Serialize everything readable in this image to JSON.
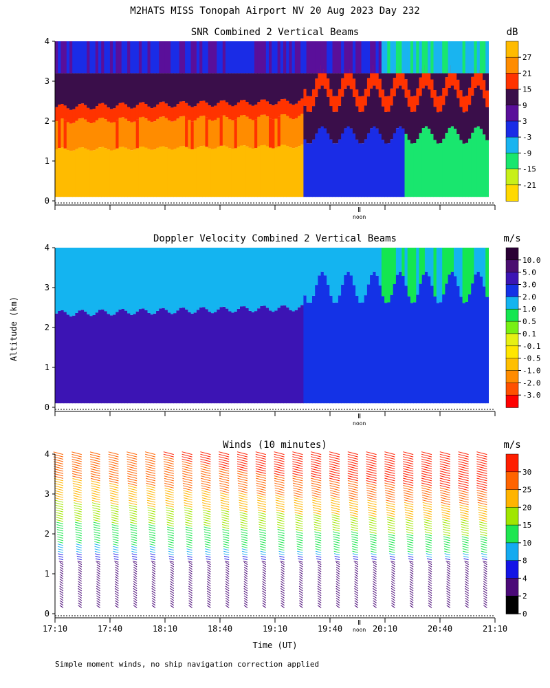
{
  "title": "M2HATS MISS Tonopah Airport NV  20 Aug 2023 Day 232",
  "ylabel": "Altitude (km)",
  "xlabel": "Time (UT)",
  "footnote": "Simple moment winds, no ship navigation correction applied",
  "x_ticks": [
    "17:10",
    "17:40",
    "18:10",
    "18:40",
    "19:10",
    "19:40",
    "20:10",
    "20:40",
    "21:10"
  ],
  "noon_label": "noon",
  "chart_data": [
    {
      "type": "heatmap",
      "title": "SNR Combined 2 Vertical Beams",
      "units": "dB",
      "y_ticks": [
        "0",
        "1",
        "2",
        "3",
        "4"
      ],
      "ylim": [
        0,
        4
      ],
      "xlim": [
        "17:10",
        "21:10"
      ],
      "colorbar": {
        "labels": [
          "27",
          "21",
          "15",
          "9",
          "3",
          "-3",
          "-9",
          "-15",
          "-21"
        ],
        "colors": [
          "#ffbb00",
          "#ff8c00",
          "#ff3300",
          "#3a0e4a",
          "#5a0f9a",
          "#1a2ce6",
          "#19b4f0",
          "#19e66e",
          "#c8f019",
          "#ffd900"
        ]
      },
      "layers": [
        {
          "name": "near-surface",
          "alt_km": [
            0.1,
            2.1
          ],
          "value_db": 24
        },
        {
          "name": "boundary",
          "alt_km": [
            2.1,
            2.6
          ],
          "value_db": 15
        },
        {
          "name": "upper",
          "alt_km": [
            2.6,
            4.0
          ],
          "value_db": 6
        }
      ]
    },
    {
      "type": "heatmap",
      "title": "Doppler Velocity Combined 2 Vertical Beams",
      "units": "m/s",
      "y_ticks": [
        "0",
        "1",
        "2",
        "3",
        "4"
      ],
      "ylim": [
        0,
        4
      ],
      "xlim": [
        "17:10",
        "21:10"
      ],
      "colorbar": {
        "labels": [
          "10.0",
          "5.0",
          "3.0",
          "2.0",
          "1.0",
          "0.5",
          "0.1",
          "-0.1",
          "-0.5",
          "-1.0",
          "-2.0",
          "-3.0"
        ],
        "colors": [
          "#2a0035",
          "#4a0e70",
          "#3c14b4",
          "#1432e6",
          "#14b4f0",
          "#14e650",
          "#78f014",
          "#e6f014",
          "#ffe600",
          "#ffbf00",
          "#ff8c00",
          "#ff5000",
          "#ff0000"
        ]
      },
      "layers": [
        {
          "name": "lower",
          "alt_km": [
            0.1,
            2.4
          ],
          "value_ms": 4
        },
        {
          "name": "upper",
          "alt_km": [
            2.4,
            4.0
          ],
          "value_ms": 1.5
        }
      ]
    },
    {
      "type": "wind_barbs",
      "title": "Winds (10 minutes)",
      "units": "m/s",
      "y_ticks": [
        "0",
        "1",
        "2",
        "3",
        "4"
      ],
      "ylim": [
        0,
        4
      ],
      "xlim": [
        "17:10",
        "21:10"
      ],
      "colorbar": {
        "labels": [
          "30",
          "25",
          "20",
          "15",
          "10",
          "8",
          "4",
          "2",
          "0"
        ],
        "colors": [
          "#ff1e00",
          "#ff6400",
          "#ffb400",
          "#a0e600",
          "#1ee650",
          "#14aaf0",
          "#1414e6",
          "#4b0a78",
          "#000000"
        ]
      },
      "profile": [
        {
          "alt_km": 0.3,
          "speed_ms": 3
        },
        {
          "alt_km": 0.6,
          "speed_ms": 4
        },
        {
          "alt_km": 1.0,
          "speed_ms": 3
        },
        {
          "alt_km": 1.2,
          "speed_ms": 2
        },
        {
          "alt_km": 1.5,
          "speed_ms": 8
        },
        {
          "alt_km": 2.0,
          "speed_ms": 12
        },
        {
          "alt_km": 2.5,
          "speed_ms": 17
        },
        {
          "alt_km": 3.0,
          "speed_ms": 22
        },
        {
          "alt_km": 3.5,
          "speed_ms": 26
        },
        {
          "alt_km": 4.0,
          "speed_ms": 28
        }
      ]
    }
  ]
}
